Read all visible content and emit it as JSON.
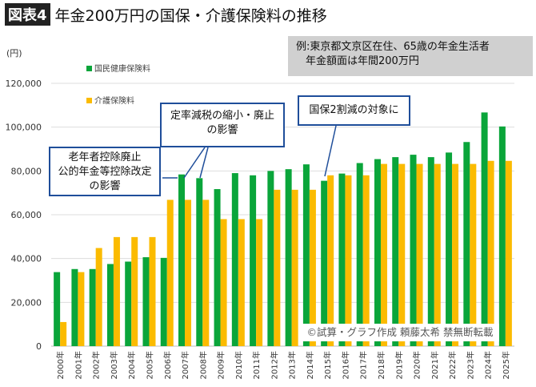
{
  "header": {
    "badge": "図表4",
    "title": "年金200万円の国保・介護保険料の推移"
  },
  "note": {
    "line1": "例:東京都文京区在住、65歳の年金生活者",
    "line2": "年金額面は年間200万円"
  },
  "callouts": [
    "定率減税の縮小・廃止の影響",
    "老年者控除廃止公的年金等控除改定の影響",
    "国保2割減の対象に"
  ],
  "callout_lines": {
    "a1": "定率減税の縮小・廃止",
    "a2": "の影響",
    "b1": "老年者控除廃止",
    "b2": "公的年金等控除改定",
    "b3": "の影響",
    "c1": "国保2割減の対象に"
  },
  "copyright": "©試算・グラフ作成 頼藤太希 禁無断転載",
  "colors": {
    "green": "#0aa53a",
    "orange": "#fbbb00",
    "callout_border": "#1f4e9a"
  },
  "chart_data": {
    "type": "bar",
    "title": "年金200万円の国保・介護保険料の推移",
    "ylabel": "(円)",
    "ylim": [
      0,
      120000
    ],
    "yticks": [
      "0",
      "20,000",
      "40,000",
      "60,000",
      "80,000",
      "100,000",
      "120,000"
    ],
    "grid": true,
    "legend_placement": "top-left",
    "categories": [
      "2000年",
      "2001年",
      "2002年",
      "2003年",
      "2004年",
      "2005年",
      "2006年",
      "2007年",
      "2008年",
      "2009年",
      "2010年",
      "2011年",
      "2012年",
      "2013年",
      "2014年",
      "2015年",
      "2016年",
      "2017年",
      "2018年",
      "2019年",
      "2020年",
      "2021年",
      "2022年",
      "2023年",
      "2024年",
      "2025年"
    ],
    "series": [
      {
        "name": "国民健康保険料",
        "color": "#0aa53a",
        "values": [
          33800,
          35200,
          35200,
          37500,
          38600,
          40600,
          40300,
          78400,
          76700,
          71700,
          79000,
          78000,
          80000,
          80800,
          83000,
          75500,
          78800,
          83600,
          85400,
          86300,
          87400,
          86300,
          88400,
          93200,
          106700,
          100300
        ]
      },
      {
        "name": "介護保険料",
        "color": "#fbbb00",
        "values": [
          11000,
          33800,
          44800,
          49800,
          49800,
          49800,
          66800,
          66800,
          66800,
          58000,
          58000,
          58000,
          71400,
          71400,
          71400,
          78000,
          78000,
          78000,
          83200,
          83200,
          83200,
          83200,
          83200,
          83200,
          84600,
          84600
        ]
      }
    ]
  }
}
